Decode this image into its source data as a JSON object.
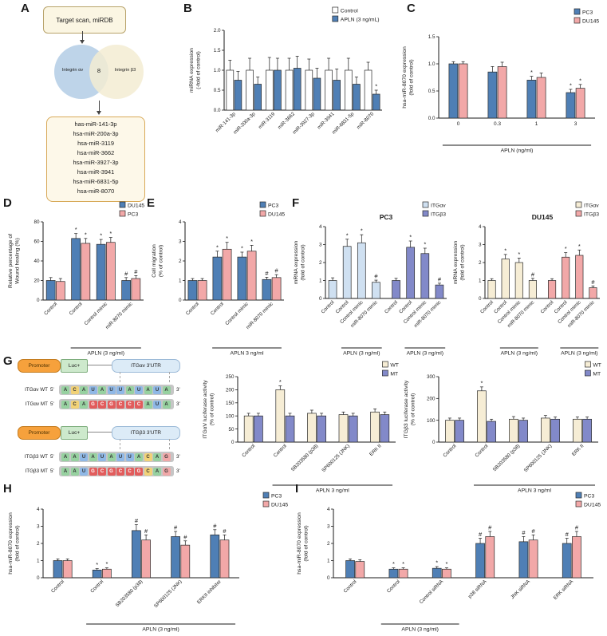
{
  "panel_labels": {
    "A": "A",
    "B": "B",
    "C": "C",
    "D": "D",
    "E": "E",
    "F": "F",
    "G": "G",
    "H": "H",
    "I": "I"
  },
  "colors": {
    "pc3_blue": "#4f7fb5",
    "du145_pink": "#f2a8a8",
    "control_white": "#ffffff",
    "itgav_pc3": "#cfe0f1",
    "itgb3_pc3": "#8289c9",
    "itgav_du145": "#f6edd5",
    "itgb3_du145": "#f2a8a8",
    "wt_cream": "#f6edd5",
    "mt_purple": "#8289c9",
    "venn_left": "#aec9e4",
    "venn_right": "#f3ecd2",
    "mutant_red": "#e25c5c",
    "nucleotide": {
      "A": "#97d1a0",
      "U": "#8fb8e6",
      "C": "#f2d277",
      "G": "#f0a8a8"
    }
  },
  "panels": {
    "A": {
      "top_box": "Target scan, miRDB",
      "venn": {
        "left": "Integrin αv",
        "overlap": "8",
        "right": "Integrin β3"
      },
      "mirna_list": [
        "has-miR-141-3p",
        "hsa-miR-200a-3p",
        "hsa-miR-3119",
        "hsa-miR-3662",
        "hsa-miR-3927-3p",
        "hsa-miR-3941",
        "hsa-miR-6831-5p",
        "hsa-miR-8070"
      ]
    },
    "G": {
      "promoter_label": "Promoter",
      "luc_label": "Luc+",
      "five_prime": "5'",
      "three_prime": "3'",
      "mut_range": [
        3,
        8
      ],
      "constructs": [
        {
          "utr": "ITGαv 3'UTR",
          "wt_label": "ITGαv WT",
          "mt_label": "ITGαv MT",
          "wt_seq": "ACAUAUUAUAUA",
          "mt_seq": "ACAGCGCCCAUA"
        },
        {
          "utr": "ITGβ3 3'UTR",
          "wt_label": "ITGβ3 WT",
          "mt_label": "ITGβ3 MT",
          "wt_seq": "AAUAUAUUACAG",
          "mt_seq": "AAUGCGCCGCAG"
        }
      ]
    }
  },
  "chart_data": [
    {
      "id": "B",
      "type": "bar",
      "ylabel": "miRNA expression\n(-fold of control)",
      "ymax": 2.0,
      "ystep": 0.5,
      "ydec": 1,
      "rot": 45,
      "categories": [
        "miR-141-3p",
        "miR-200a-3p",
        "miR-3119",
        "miR-3662",
        "miR-3927-3p",
        "miR-3941",
        "miR-6831-5p",
        "miR-8070"
      ],
      "series": [
        {
          "name": "Control",
          "color": "#ffffff",
          "values": [
            1.0,
            1.0,
            1.0,
            1.0,
            1.0,
            1.0,
            1.0,
            1.0
          ],
          "errors": [
            0.25,
            0.3,
            0.32,
            0.3,
            0.28,
            0.3,
            0.3,
            0.2
          ],
          "sig": [
            "",
            "",
            "",
            "",
            "",
            "",
            "",
            ""
          ]
        },
        {
          "name": "APLN (3 ng/mL)",
          "color": "#4f7fb5",
          "values": [
            0.75,
            0.65,
            1.0,
            1.05,
            0.8,
            0.75,
            0.65,
            0.4
          ],
          "errors": [
            0.22,
            0.18,
            0.3,
            0.3,
            0.25,
            0.28,
            0.18,
            0.1
          ],
          "sig": [
            "",
            "",
            "",
            "",
            "",
            "",
            "",
            "*"
          ]
        }
      ]
    },
    {
      "id": "C",
      "type": "bar",
      "ylabel": "hsa-miR-8070 expression\n(fold of control)",
      "ymax": 1.5,
      "ystep": 0.5,
      "ydec": 1,
      "rot": 0,
      "categories": [
        "0",
        "0.3",
        "1",
        "3"
      ],
      "series": [
        {
          "name": "PC3",
          "color": "#4f7fb5",
          "values": [
            1.0,
            0.85,
            0.7,
            0.47
          ],
          "errors": [
            0.04,
            0.1,
            0.07,
            0.06
          ],
          "sig": [
            "",
            "",
            "*",
            "*"
          ]
        },
        {
          "name": "DU145",
          "color": "#f2a8a8",
          "values": [
            1.0,
            0.95,
            0.75,
            0.55
          ],
          "errors": [
            0.04,
            0.08,
            0.08,
            0.07
          ],
          "sig": [
            "",
            "",
            "",
            "*"
          ]
        }
      ],
      "brackets": [
        {
          "from": 0,
          "to": 3,
          "label": "APLN (ng/ml)"
        }
      ]
    },
    {
      "id": "D",
      "type": "bar",
      "ylabel": "Relative percentage of\nWound healing (%)",
      "ymax": 80,
      "ystep": 20,
      "ydec": 0,
      "rot": 45,
      "categories": [
        "Control",
        "Control",
        "Control mimic",
        "miR-8070 mimic"
      ],
      "series": [
        {
          "name": "DU145",
          "color": "#4f7fb5",
          "values": [
            20,
            63,
            57,
            20
          ],
          "errors": [
            3,
            5,
            5,
            3
          ],
          "sig": [
            "",
            "*",
            "*",
            "#"
          ]
        },
        {
          "name": "PC3",
          "color": "#f2a8a8",
          "values": [
            19,
            58,
            59,
            22
          ],
          "errors": [
            3,
            5,
            5,
            3
          ],
          "sig": [
            "",
            "*",
            "*",
            "#"
          ]
        }
      ],
      "brackets": [
        {
          "from": 1,
          "to": 3,
          "label": "APLN (3 ng/ml)"
        }
      ]
    },
    {
      "id": "E",
      "type": "bar",
      "ylabel": "Cell migration\n(% of control)",
      "ymax": 4,
      "ystep": 1,
      "ydec": 0,
      "rot": 45,
      "categories": [
        "Control",
        "Control",
        "Control mimic",
        "miR-8070 mimic"
      ],
      "series": [
        {
          "name": "PC3",
          "color": "#4f7fb5",
          "values": [
            1.0,
            2.2,
            2.2,
            1.05
          ],
          "errors": [
            0.1,
            0.3,
            0.25,
            0.12
          ],
          "sig": [
            "",
            "*",
            "*",
            "#"
          ]
        },
        {
          "name": "DU145",
          "color": "#f2a8a8",
          "values": [
            1.0,
            2.6,
            2.5,
            1.15
          ],
          "errors": [
            0.1,
            0.35,
            0.3,
            0.15
          ],
          "sig": [
            "",
            "*",
            "*",
            "#"
          ]
        }
      ],
      "brackets": [
        {
          "from": 1,
          "to": 3,
          "label": "APLN 3 ng/ml"
        }
      ]
    },
    {
      "id": "F1",
      "type": "bar",
      "title": "PC3",
      "mode": "single",
      "split": 4,
      "ylabel": "mRNA expression\n(fold of control)",
      "ymax": 4,
      "ystep": 1,
      "ydec": 0,
      "rot": 45,
      "categories": [
        "Control",
        "Control",
        "Control mimic",
        "miR-8070 mimic",
        "Control",
        "Control",
        "Control mimic",
        "miR-8070 mimic"
      ],
      "legend": [
        {
          "name": "ITGαv",
          "color": "#cfe0f1"
        },
        {
          "name": "ITGβ3",
          "color": "#8289c9"
        }
      ],
      "bar_colors": [
        0,
        0,
        0,
        0,
        1,
        1,
        1,
        1
      ],
      "values": [
        1.0,
        2.9,
        3.1,
        0.9,
        1.0,
        2.85,
        2.5,
        0.75
      ],
      "errors": [
        0.15,
        0.4,
        0.45,
        0.12,
        0.12,
        0.35,
        0.3,
        0.1
      ],
      "sig": [
        "",
        "*",
        "*",
        "#",
        "",
        "*",
        "*",
        "#"
      ],
      "brackets": [
        {
          "from": 1,
          "to": 3,
          "label": "APLN (3 ng/ml)"
        },
        {
          "from": 5,
          "to": 7,
          "label": "APLN (3 ng/ml)"
        }
      ]
    },
    {
      "id": "F2",
      "type": "bar",
      "title": "DU145",
      "mode": "single",
      "split": 4,
      "ylabel": "mRNA expression\n(fold of control)",
      "ymax": 4,
      "ystep": 1,
      "ydec": 0,
      "rot": 45,
      "categories": [
        "Control",
        "Control",
        "Control mimic",
        "miR-8070 mimic",
        "Control",
        "Control",
        "Control mimic",
        "miR-8070 mimic"
      ],
      "legend": [
        {
          "name": "ITGαv",
          "color": "#f6edd5"
        },
        {
          "name": "ITGβ3",
          "color": "#f2a8a8"
        }
      ],
      "bar_colors": [
        0,
        0,
        0,
        0,
        1,
        1,
        1,
        1
      ],
      "values": [
        1.0,
        2.2,
        2.0,
        1.0,
        1.0,
        2.3,
        2.4,
        0.6
      ],
      "errors": [
        0.1,
        0.25,
        0.25,
        0.12,
        0.1,
        0.25,
        0.3,
        0.1
      ],
      "sig": [
        "",
        "*",
        "*",
        "#",
        "",
        "*",
        "*",
        "#"
      ],
      "brackets": [
        {
          "from": 1,
          "to": 3,
          "label": "APLN (3 ng/ml)"
        },
        {
          "from": 5,
          "to": 7,
          "label": "APLN (3 ng/ml)"
        }
      ]
    },
    {
      "id": "G1",
      "type": "bar",
      "ylabel": "ITGαV luciferase activity\n(% of control)",
      "ymax": 250,
      "ystep": 50,
      "ydec": 0,
      "rot": 45,
      "categories": [
        "Control",
        "Control",
        "SB203580 (p38)",
        "SP600125 (JNK)",
        "ERK II"
      ],
      "series": [
        {
          "name": "WT",
          "color": "#f6edd5",
          "values": [
            100,
            200,
            110,
            105,
            115
          ],
          "errors": [
            10,
            15,
            12,
            10,
            12
          ],
          "sig": [
            "",
            "*",
            "",
            "",
            ""
          ]
        },
        {
          "name": "MT",
          "color": "#8289c9",
          "values": [
            100,
            100,
            100,
            100,
            105
          ],
          "errors": [
            10,
            10,
            10,
            10,
            10
          ],
          "sig": [
            "",
            "",
            "",
            "",
            ""
          ]
        }
      ],
      "brackets": [
        {
          "from": 1,
          "to": 4,
          "label": "APLN 3 ng/ml"
        }
      ]
    },
    {
      "id": "G2",
      "type": "bar",
      "ylabel": "ITGβ3 luciferase activity\n(% of control)",
      "ymax": 300,
      "ystep": 100,
      "ydec": 0,
      "rot": 45,
      "categories": [
        "Control",
        "Control",
        "SB203580 (p38)",
        "SP600125 (JNK)",
        "ERK II"
      ],
      "series": [
        {
          "name": "WT",
          "color": "#f6edd5",
          "values": [
            100,
            235,
            105,
            110,
            105
          ],
          "errors": [
            10,
            18,
            12,
            12,
            10
          ],
          "sig": [
            "",
            "*",
            "",
            "",
            ""
          ]
        },
        {
          "name": "MT",
          "color": "#8289c9",
          "values": [
            100,
            95,
            100,
            105,
            105
          ],
          "errors": [
            10,
            10,
            10,
            10,
            10
          ],
          "sig": [
            "",
            "",
            "",
            "",
            ""
          ]
        }
      ],
      "brackets": [
        {
          "from": 1,
          "to": 4,
          "label": "APLN 3 ng/ml"
        }
      ]
    },
    {
      "id": "H",
      "type": "bar",
      "ylabel": "hsa-miR-8070 expression\n(fold of control)",
      "ymax": 4,
      "ystep": 1,
      "ydec": 0,
      "rot": 45,
      "categories": [
        "Control",
        "Control",
        "SB203580 (p38)",
        "SP600125 (JNK)",
        "ERKII inhibitor"
      ],
      "series": [
        {
          "name": "PC3",
          "color": "#4f7fb5",
          "values": [
            1.0,
            0.45,
            2.75,
            2.4,
            2.5
          ],
          "errors": [
            0.1,
            0.08,
            0.35,
            0.3,
            0.3
          ],
          "sig": [
            "",
            "*",
            "#",
            "#",
            "#"
          ]
        },
        {
          "name": "DU145",
          "color": "#f2a8a8",
          "values": [
            1.0,
            0.5,
            2.2,
            1.9,
            2.2
          ],
          "errors": [
            0.1,
            0.08,
            0.3,
            0.25,
            0.3
          ],
          "sig": [
            "",
            "*",
            "#",
            "#",
            "#"
          ]
        }
      ],
      "brackets": [
        {
          "from": 1,
          "to": 4,
          "label": "APLN (3 ng/ml)"
        }
      ]
    },
    {
      "id": "I",
      "type": "bar",
      "ylabel": "hsa-miR-8070 expression\n(fold of control)",
      "ymax": 4,
      "ystep": 1,
      "ydec": 0,
      "rot": 45,
      "categories": [
        "Control",
        "Control",
        "Control siRNA",
        "p38 siRNA",
        "JNK siRNA",
        "ERK siRNA"
      ],
      "series": [
        {
          "name": "PC3",
          "color": "#4f7fb5",
          "values": [
            1.0,
            0.5,
            0.55,
            2.0,
            2.1,
            2.0
          ],
          "errors": [
            0.1,
            0.08,
            0.1,
            0.3,
            0.3,
            0.3
          ],
          "sig": [
            "",
            "*",
            "*",
            "#",
            "#",
            "#"
          ]
        },
        {
          "name": "DU145",
          "color": "#f2a8a8",
          "values": [
            0.95,
            0.5,
            0.5,
            2.4,
            2.2,
            2.4
          ],
          "errors": [
            0.1,
            0.08,
            0.08,
            0.3,
            0.3,
            0.3
          ],
          "sig": [
            "",
            "*",
            "*",
            "#",
            "#",
            "#"
          ]
        }
      ],
      "brackets": [
        {
          "from": 1,
          "to": 2,
          "label": "APLN (3 ng/ml)"
        }
      ]
    }
  ]
}
